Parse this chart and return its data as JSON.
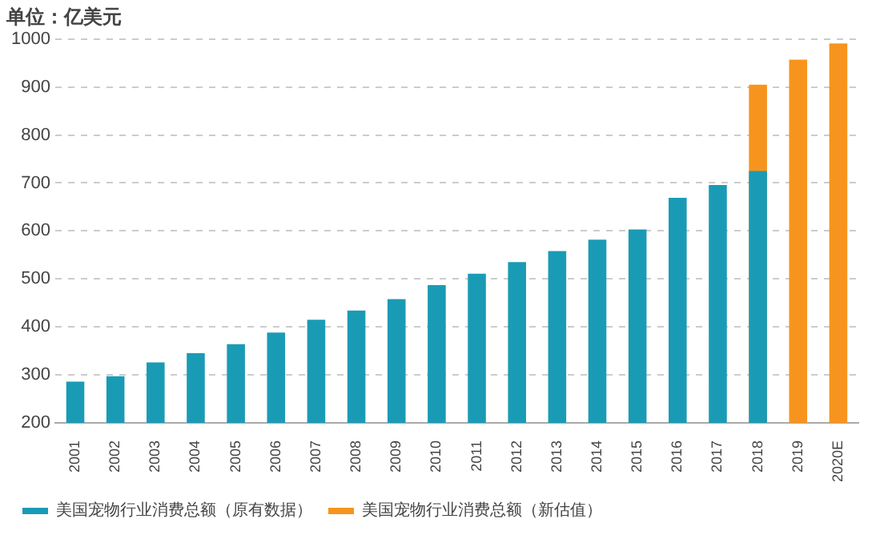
{
  "chart_data": {
    "type": "bar",
    "ylabel": "单位：亿美元",
    "categories": [
      "2001",
      "2002",
      "2003",
      "2004",
      "2005",
      "2006",
      "2007",
      "2008",
      "2009",
      "2010",
      "2011",
      "2012",
      "2013",
      "2014",
      "2015",
      "2016",
      "2017",
      "2018",
      "2019",
      "2020E"
    ],
    "series": [
      {
        "name": "美国宠物行业消费总额（原有数据）",
        "color": "#1a9bb5",
        "values": [
          286,
          297,
          326,
          345,
          364,
          388,
          415,
          434,
          458,
          487,
          511,
          535,
          558,
          582,
          603,
          669,
          696,
          725,
          null,
          null
        ]
      },
      {
        "name": "美国宠物行业消费总额（新估值）",
        "color": "#f7941d",
        "values": [
          null,
          null,
          null,
          null,
          null,
          null,
          null,
          null,
          null,
          null,
          null,
          null,
          null,
          null,
          null,
          null,
          null,
          905,
          957,
          991
        ]
      }
    ],
    "ylim": [
      200,
      1000
    ],
    "yticks": [
      200,
      300,
      400,
      500,
      600,
      700,
      800,
      900,
      1000
    ],
    "grid": "y",
    "legend": "bottom"
  }
}
